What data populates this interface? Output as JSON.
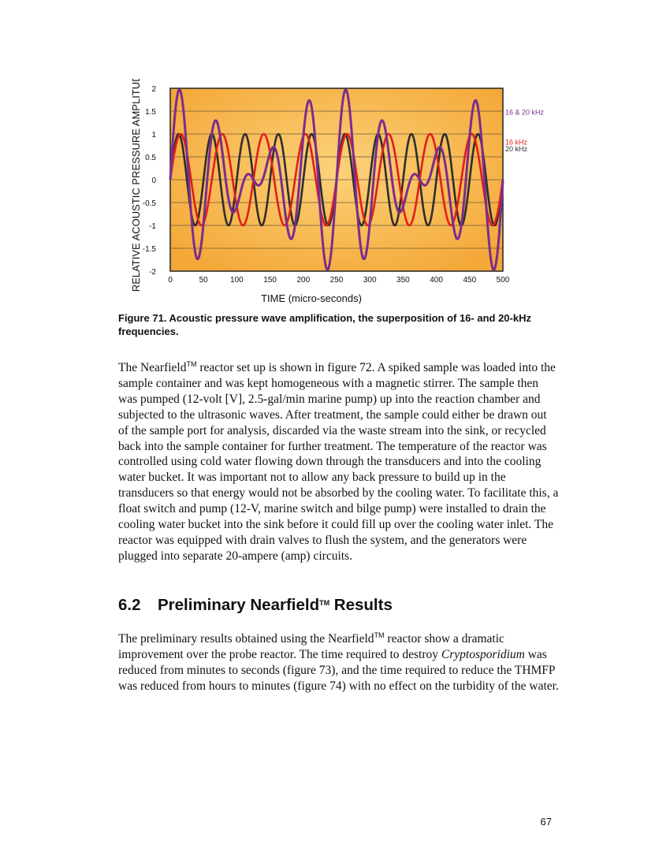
{
  "figure": {
    "caption": "Figure 71.  Acoustic pressure wave amplification, the superposition of 16- and 20-kHz frequencies.",
    "chart_data": {
      "type": "line",
      "xlabel": "TIME (micro-seconds)",
      "ylabel": "RELATIVE ACOUSTIC PRESSURE AMPLITUDE",
      "xlim": [
        0,
        500
      ],
      "ylim": [
        -2,
        2
      ],
      "x_ticks": [
        "0",
        "50",
        "100",
        "150",
        "200",
        "250",
        "300",
        "350",
        "400",
        "450",
        "500"
      ],
      "y_ticks": [
        "2",
        "1.5",
        "1",
        "0.5",
        "0",
        "-0.5",
        "-1",
        "-1.5",
        "-2"
      ],
      "grid": true,
      "legend": "right",
      "series": [
        {
          "name": "16 & 20 kHz",
          "function": "sin(2π·0.016·t) + sin(2π·0.020·t)",
          "amplitude_range": [
            -2,
            2
          ],
          "color": "#7b2d8e"
        },
        {
          "name": "16 kHz",
          "function": "sin(2π·0.016·t)",
          "frequency_khz": 16,
          "amplitude": 1,
          "color": "#e0201b"
        },
        {
          "name": "20 kHz",
          "function": "sin(2π·0.020·t)",
          "frequency_khz": 20,
          "amplitude": 1,
          "color": "#2e2e2e"
        }
      ],
      "plot_background": "#f8b84a"
    }
  },
  "paragraph1": {
    "part1": "The Nearfield",
    "tm": "TM",
    "part2": " reactor set up is shown in figure 72.  A spiked sample was loaded into the sample container and was kept homogeneous with a magnetic stirrer.  The sample then was pumped (12-volt [V], 2.5-gal/min marine pump) up into the reaction chamber and subjected to the ultrasonic waves.  After treatment, the sample could either be drawn out of the sample port for analysis, discarded via the waste stream into the sink, or recycled back into the sample container for further treatment.  The temperature of the reactor was controlled using cold water flowing down through the transducers and into the cooling water bucket.  It was important not to allow any back pressure to build up in the transducers so that energy would not be absorbed by the cooling water.  To facilitate this, a float switch and pump (12-V, marine switch and bilge pump) were installed to drain the cooling water bucket into the sink before it could fill up over the cooling water inlet.  The reactor was equipped with drain valves to flush the system, and the generators were plugged into separate 20-ampere (amp) circuits."
  },
  "heading": {
    "number": "6.2",
    "title_part1": "Preliminary Nearfield",
    "tm": "TM",
    "title_part2": " Results"
  },
  "paragraph2": {
    "part1": "The preliminary results obtained using the Nearfield",
    "tm": "TM",
    "part2": " reactor show a dramatic improvement over the probe reactor.  The time required to destroy ",
    "italic": "Cryptosporidium",
    "part3": " was reduced from minutes to seconds (figure 73), and the time required to reduce the THMFP was reduced from hours to minutes (figure 74) with no effect on the turbidity of the water."
  },
  "page_number": "67"
}
